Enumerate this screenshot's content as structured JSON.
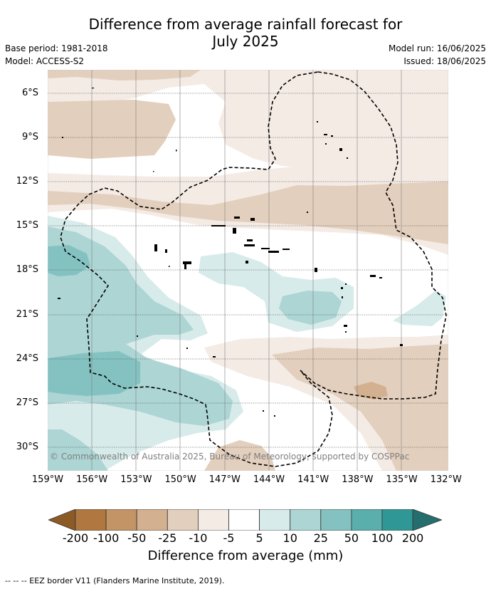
{
  "title": "Difference from average rainfall forecast for July 2025",
  "title_line1": "Difference from average rainfall forecast for",
  "title_line2": "July 2025",
  "base_period": "Base period: 1981-2018",
  "model": "Model: ACCESS-S2",
  "model_run": "Model run: 16/06/2025",
  "issued": "Issued: 18/06/2025",
  "latitude_labels": [
    "6°S",
    "9°S",
    "12°S",
    "15°S",
    "18°S",
    "21°S",
    "24°S",
    "27°S",
    "30°S"
  ],
  "longitude_labels": [
    "159°W",
    "156°W",
    "153°W",
    "150°W",
    "147°W",
    "144°W",
    "141°W",
    "138°W",
    "135°W",
    "132°W"
  ],
  "colorbar": {
    "label": "Difference from average (mm)",
    "ticks": [
      "-200",
      "-100",
      "-50",
      "-25",
      "-10",
      "-5",
      "5",
      "10",
      "25",
      "50",
      "100",
      "200"
    ],
    "colors": [
      "#8c5a24",
      "#b07840",
      "#c39466",
      "#d3b08f",
      "#e3cfbd",
      "#f4ebe5",
      "#ffffff",
      "#d7ebea",
      "#acd5d4",
      "#84c2c1",
      "#5aaeac",
      "#2f9896",
      "#246f6e"
    ]
  },
  "copyright": "© Commonwealth of Australia 2025, Bureau of Meteorology, supported by COSPPac",
  "footnote": "--  --  -- EEZ border V11 (Flanders Marine Institute, 2019)."
}
